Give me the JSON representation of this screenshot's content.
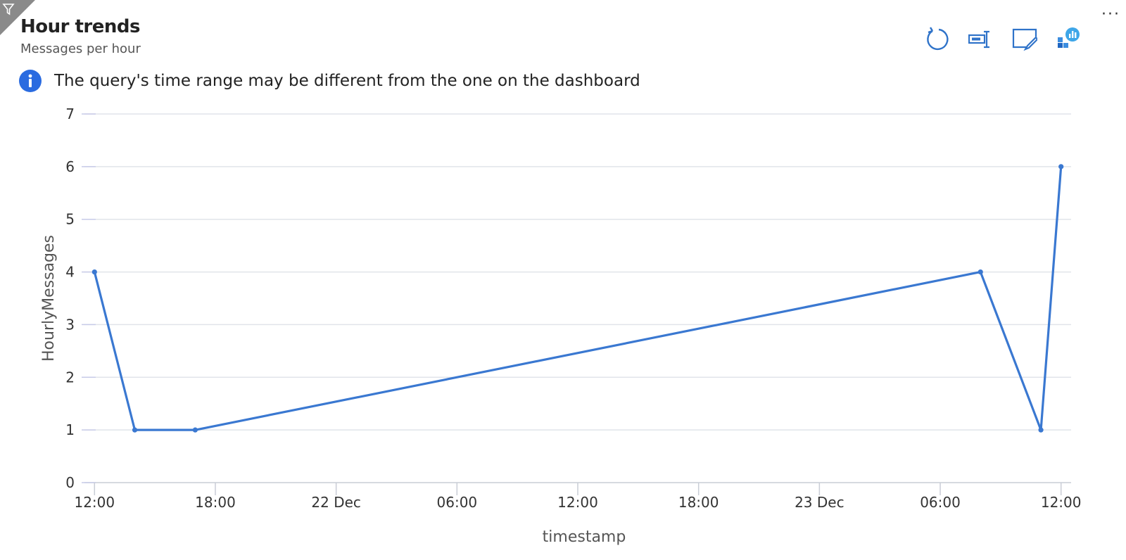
{
  "header": {
    "title": "Hour trends",
    "subtitle": "Messages per hour"
  },
  "notice": {
    "text": "The query's time range may be different from the one on the dashboard",
    "icon": "info-icon"
  },
  "toolbar": [
    {
      "name": "refresh-button",
      "icon": "refresh-icon"
    },
    {
      "name": "open-in-logs-button",
      "icon": "logs-icon"
    },
    {
      "name": "edit-button",
      "icon": "edit-icon"
    },
    {
      "name": "workbook-button",
      "icon": "workbook-icon"
    }
  ],
  "more_label": "···",
  "colors": {
    "accent": "#2f73c9",
    "line": "#3a78d1",
    "info": "#2a6be0"
  },
  "chart_data": {
    "type": "line",
    "xlabel": "timestamp",
    "ylabel": "HourlyMessages",
    "ylim": [
      0,
      7
    ],
    "yticks": [
      0,
      1,
      2,
      3,
      4,
      5,
      6,
      7
    ],
    "xlim": [
      "21 Dec 11:30",
      "23 Dec 12:30"
    ],
    "xticks": [
      {
        "label": "12:00",
        "t": "21 Dec 12:00"
      },
      {
        "label": "18:00",
        "t": "21 Dec 18:00"
      },
      {
        "label": "22 Dec",
        "t": "22 Dec 00:00"
      },
      {
        "label": "06:00",
        "t": "22 Dec 06:00"
      },
      {
        "label": "12:00",
        "t": "22 Dec 12:00"
      },
      {
        "label": "18:00",
        "t": "22 Dec 18:00"
      },
      {
        "label": "23 Dec",
        "t": "23 Dec 00:00"
      },
      {
        "label": "06:00",
        "t": "23 Dec 06:00"
      },
      {
        "label": "12:00",
        "t": "23 Dec 12:00"
      }
    ],
    "grid": true,
    "series": [
      {
        "points": [
          {
            "t": "21 Dec 12:00",
            "y": 4
          },
          {
            "t": "21 Dec 14:00",
            "y": 1
          },
          {
            "t": "21 Dec 17:00",
            "y": 1
          },
          {
            "t": "23 Dec 08:00",
            "y": 4
          },
          {
            "t": "23 Dec 11:00",
            "y": 1
          },
          {
            "t": "23 Dec 12:00",
            "y": 6
          }
        ]
      }
    ]
  }
}
